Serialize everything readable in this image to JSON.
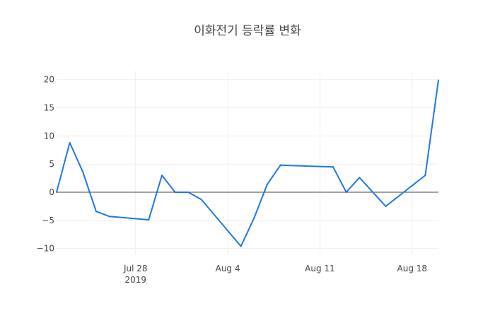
{
  "chart_data": {
    "type": "line",
    "title": "이화전기 등락률 변화",
    "xlabel": "",
    "ylabel": "",
    "x_range": [
      "2019-07-22",
      "2019-08-19"
    ],
    "ylim": [
      -11.05,
      21.6
    ],
    "y_ticks": [
      20,
      15,
      10,
      5,
      0,
      -5,
      -10
    ],
    "y_tick_labels": [
      "20",
      "15",
      "10",
      "5",
      "0",
      "−5",
      "−10"
    ],
    "x_ticks": [
      {
        "date": "2019-07-28",
        "label": "Jul 28",
        "sublabel": "2019"
      },
      {
        "date": "2019-08-04",
        "label": "Aug 4",
        "sublabel": ""
      },
      {
        "date": "2019-08-11",
        "label": "Aug 11",
        "sublabel": ""
      },
      {
        "date": "2019-08-18",
        "label": "Aug 18",
        "sublabel": ""
      }
    ],
    "grid": true,
    "zero_line": true,
    "series": [
      {
        "color": "#1f77e4",
        "points": [
          {
            "x": "2019-07-22",
            "y": 0.0
          },
          {
            "x": "2019-07-23",
            "y": 8.8
          },
          {
            "x": "2019-07-24",
            "y": 3.6
          },
          {
            "x": "2019-07-25",
            "y": -3.4
          },
          {
            "x": "2019-07-26",
            "y": -4.3
          },
          {
            "x": "2019-07-29",
            "y": -4.9
          },
          {
            "x": "2019-07-30",
            "y": 3.0
          },
          {
            "x": "2019-07-31",
            "y": 0.0
          },
          {
            "x": "2019-08-01",
            "y": 0.0
          },
          {
            "x": "2019-08-02",
            "y": -1.3
          },
          {
            "x": "2019-08-05",
            "y": -9.6
          },
          {
            "x": "2019-08-06",
            "y": -4.6
          },
          {
            "x": "2019-08-07",
            "y": 1.4
          },
          {
            "x": "2019-08-08",
            "y": 4.8
          },
          {
            "x": "2019-08-12",
            "y": 4.5
          },
          {
            "x": "2019-08-13",
            "y": 0.0
          },
          {
            "x": "2019-08-14",
            "y": 2.6
          },
          {
            "x": "2019-08-16",
            "y": -2.5
          },
          {
            "x": "2019-08-19",
            "y": 3.0
          },
          {
            "x": "2019-08-20",
            "y": 19.9
          }
        ]
      }
    ]
  }
}
